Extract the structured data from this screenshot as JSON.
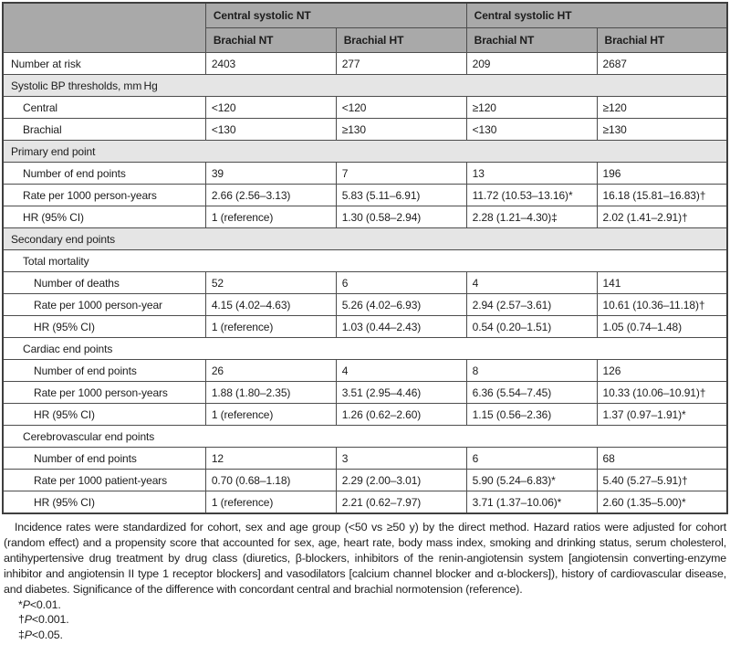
{
  "colors": {
    "header_bg": "#a9a9a9",
    "section_bg": "#e5e5e5",
    "border": "#4d4d4d",
    "text": "#1c1c1c"
  },
  "table": {
    "column_groups": [
      "Central systolic NT",
      "Central systolic HT"
    ],
    "column_headers": [
      "Brachial NT",
      "Brachial HT",
      "Brachial NT",
      "Brachial HT"
    ],
    "rows": [
      {
        "type": "data",
        "indent": 1,
        "label": "Number at risk",
        "values": [
          "2403",
          "277",
          "209",
          "2687"
        ]
      },
      {
        "type": "section",
        "indent": 1,
        "label": "Systolic BP thresholds, mm Hg"
      },
      {
        "type": "data",
        "indent": 2,
        "label": "Central",
        "values": [
          "<120",
          "<120",
          "≥120",
          "≥120"
        ]
      },
      {
        "type": "data",
        "indent": 2,
        "label": "Brachial",
        "values": [
          "<130",
          "≥130",
          "<130",
          "≥130"
        ]
      },
      {
        "type": "section",
        "indent": 1,
        "label": "Primary end point"
      },
      {
        "type": "data",
        "indent": 2,
        "label": "Number of end points",
        "values": [
          "39",
          "7",
          "13",
          "196"
        ]
      },
      {
        "type": "data",
        "indent": 2,
        "label": "Rate per 1000 person-years",
        "values": [
          "2.66 (2.56–3.13)",
          "5.83 (5.11–6.91)",
          "11.72 (10.53–13.16)*",
          "16.18 (15.81–16.83)†"
        ]
      },
      {
        "type": "data",
        "indent": 2,
        "label": "HR (95% CI)",
        "values": [
          "1 (reference)",
          "1.30 (0.58–2.94)",
          "2.28 (1.21–4.30)‡",
          "2.02 (1.41–2.91)†"
        ]
      },
      {
        "type": "section",
        "indent": 1,
        "label": "Secondary end points"
      },
      {
        "type": "subsection",
        "indent": 2,
        "label": "Total mortality"
      },
      {
        "type": "data",
        "indent": 3,
        "label": "Number of deaths",
        "values": [
          "52",
          "6",
          "4",
          "141"
        ]
      },
      {
        "type": "data",
        "indent": 3,
        "label": "Rate per 1000 person-year",
        "values": [
          "4.15 (4.02–4.63)",
          "5.26 (4.02–6.93)",
          "2.94 (2.57–3.61)",
          "10.61 (10.36–11.18)†"
        ]
      },
      {
        "type": "data",
        "indent": 3,
        "label": "HR (95% CI)",
        "values": [
          "1 (reference)",
          "1.03 (0.44–2.43)",
          "0.54 (0.20–1.51)",
          "1.05 (0.74–1.48)"
        ]
      },
      {
        "type": "subsection",
        "indent": 2,
        "label": "Cardiac end points"
      },
      {
        "type": "data",
        "indent": 3,
        "label": "Number of end points",
        "values": [
          "26",
          "4",
          "8",
          "126"
        ]
      },
      {
        "type": "data",
        "indent": 3,
        "label": "Rate per 1000 person-years",
        "values": [
          "1.88 (1.80–2.35)",
          "3.51 (2.95–4.46)",
          "6.36 (5.54–7.45)",
          "10.33 (10.06–10.91)†"
        ]
      },
      {
        "type": "data",
        "indent": 3,
        "label": "HR (95% CI)",
        "values": [
          "1 (reference)",
          "1.26 (0.62–2.60)",
          "1.15 (0.56–2.36)",
          "1.37 (0.97–1.91)*"
        ]
      },
      {
        "type": "subsection",
        "indent": 2,
        "label": "Cerebrovascular end points"
      },
      {
        "type": "data",
        "indent": 3,
        "label": "Number of end points",
        "values": [
          "12",
          "3",
          "6",
          "68"
        ]
      },
      {
        "type": "data",
        "indent": 3,
        "label": "Rate per 1000 patient-years",
        "values": [
          "0.70 (0.68–1.18)",
          "2.29 (2.00–3.01)",
          "5.90 (5.24–6.83)*",
          "5.40 (5.27–5.91)†"
        ]
      },
      {
        "type": "data",
        "indent": 3,
        "label": "HR (95% CI)",
        "values": [
          "1 (reference)",
          "2.21 (0.62–7.97)",
          "3.71 (1.37–10.06)*",
          "2.60 (1.35–5.00)*"
        ]
      }
    ]
  },
  "footnotes": {
    "body": "Incidence rates were standardized for cohort, sex and age group (<50 vs ≥50 y) by the direct method. Hazard ratios were adjusted for cohort (random effect) and a propensity score that accounted for sex, age, heart rate, body mass index, smoking and drinking status, serum cholesterol, antihypertensive drug treatment by drug class (diuretics, β-blockers, inhibitors of the renin-angiotensin system [angiotensin converting-enzyme inhibitor and angiotensin II type 1 receptor blockers] and vasodilators [calcium channel blocker and α-blockers]), history of cardiovascular disease, and diabetes. Significance of the difference with concordant central and brachial normotension (reference).",
    "significance": [
      {
        "marker": "*",
        "variable": "P",
        "value": "<0.01."
      },
      {
        "marker": "†",
        "variable": "P",
        "value": "<0.001."
      },
      {
        "marker": "‡",
        "variable": "P",
        "value": "<0.05."
      }
    ]
  }
}
